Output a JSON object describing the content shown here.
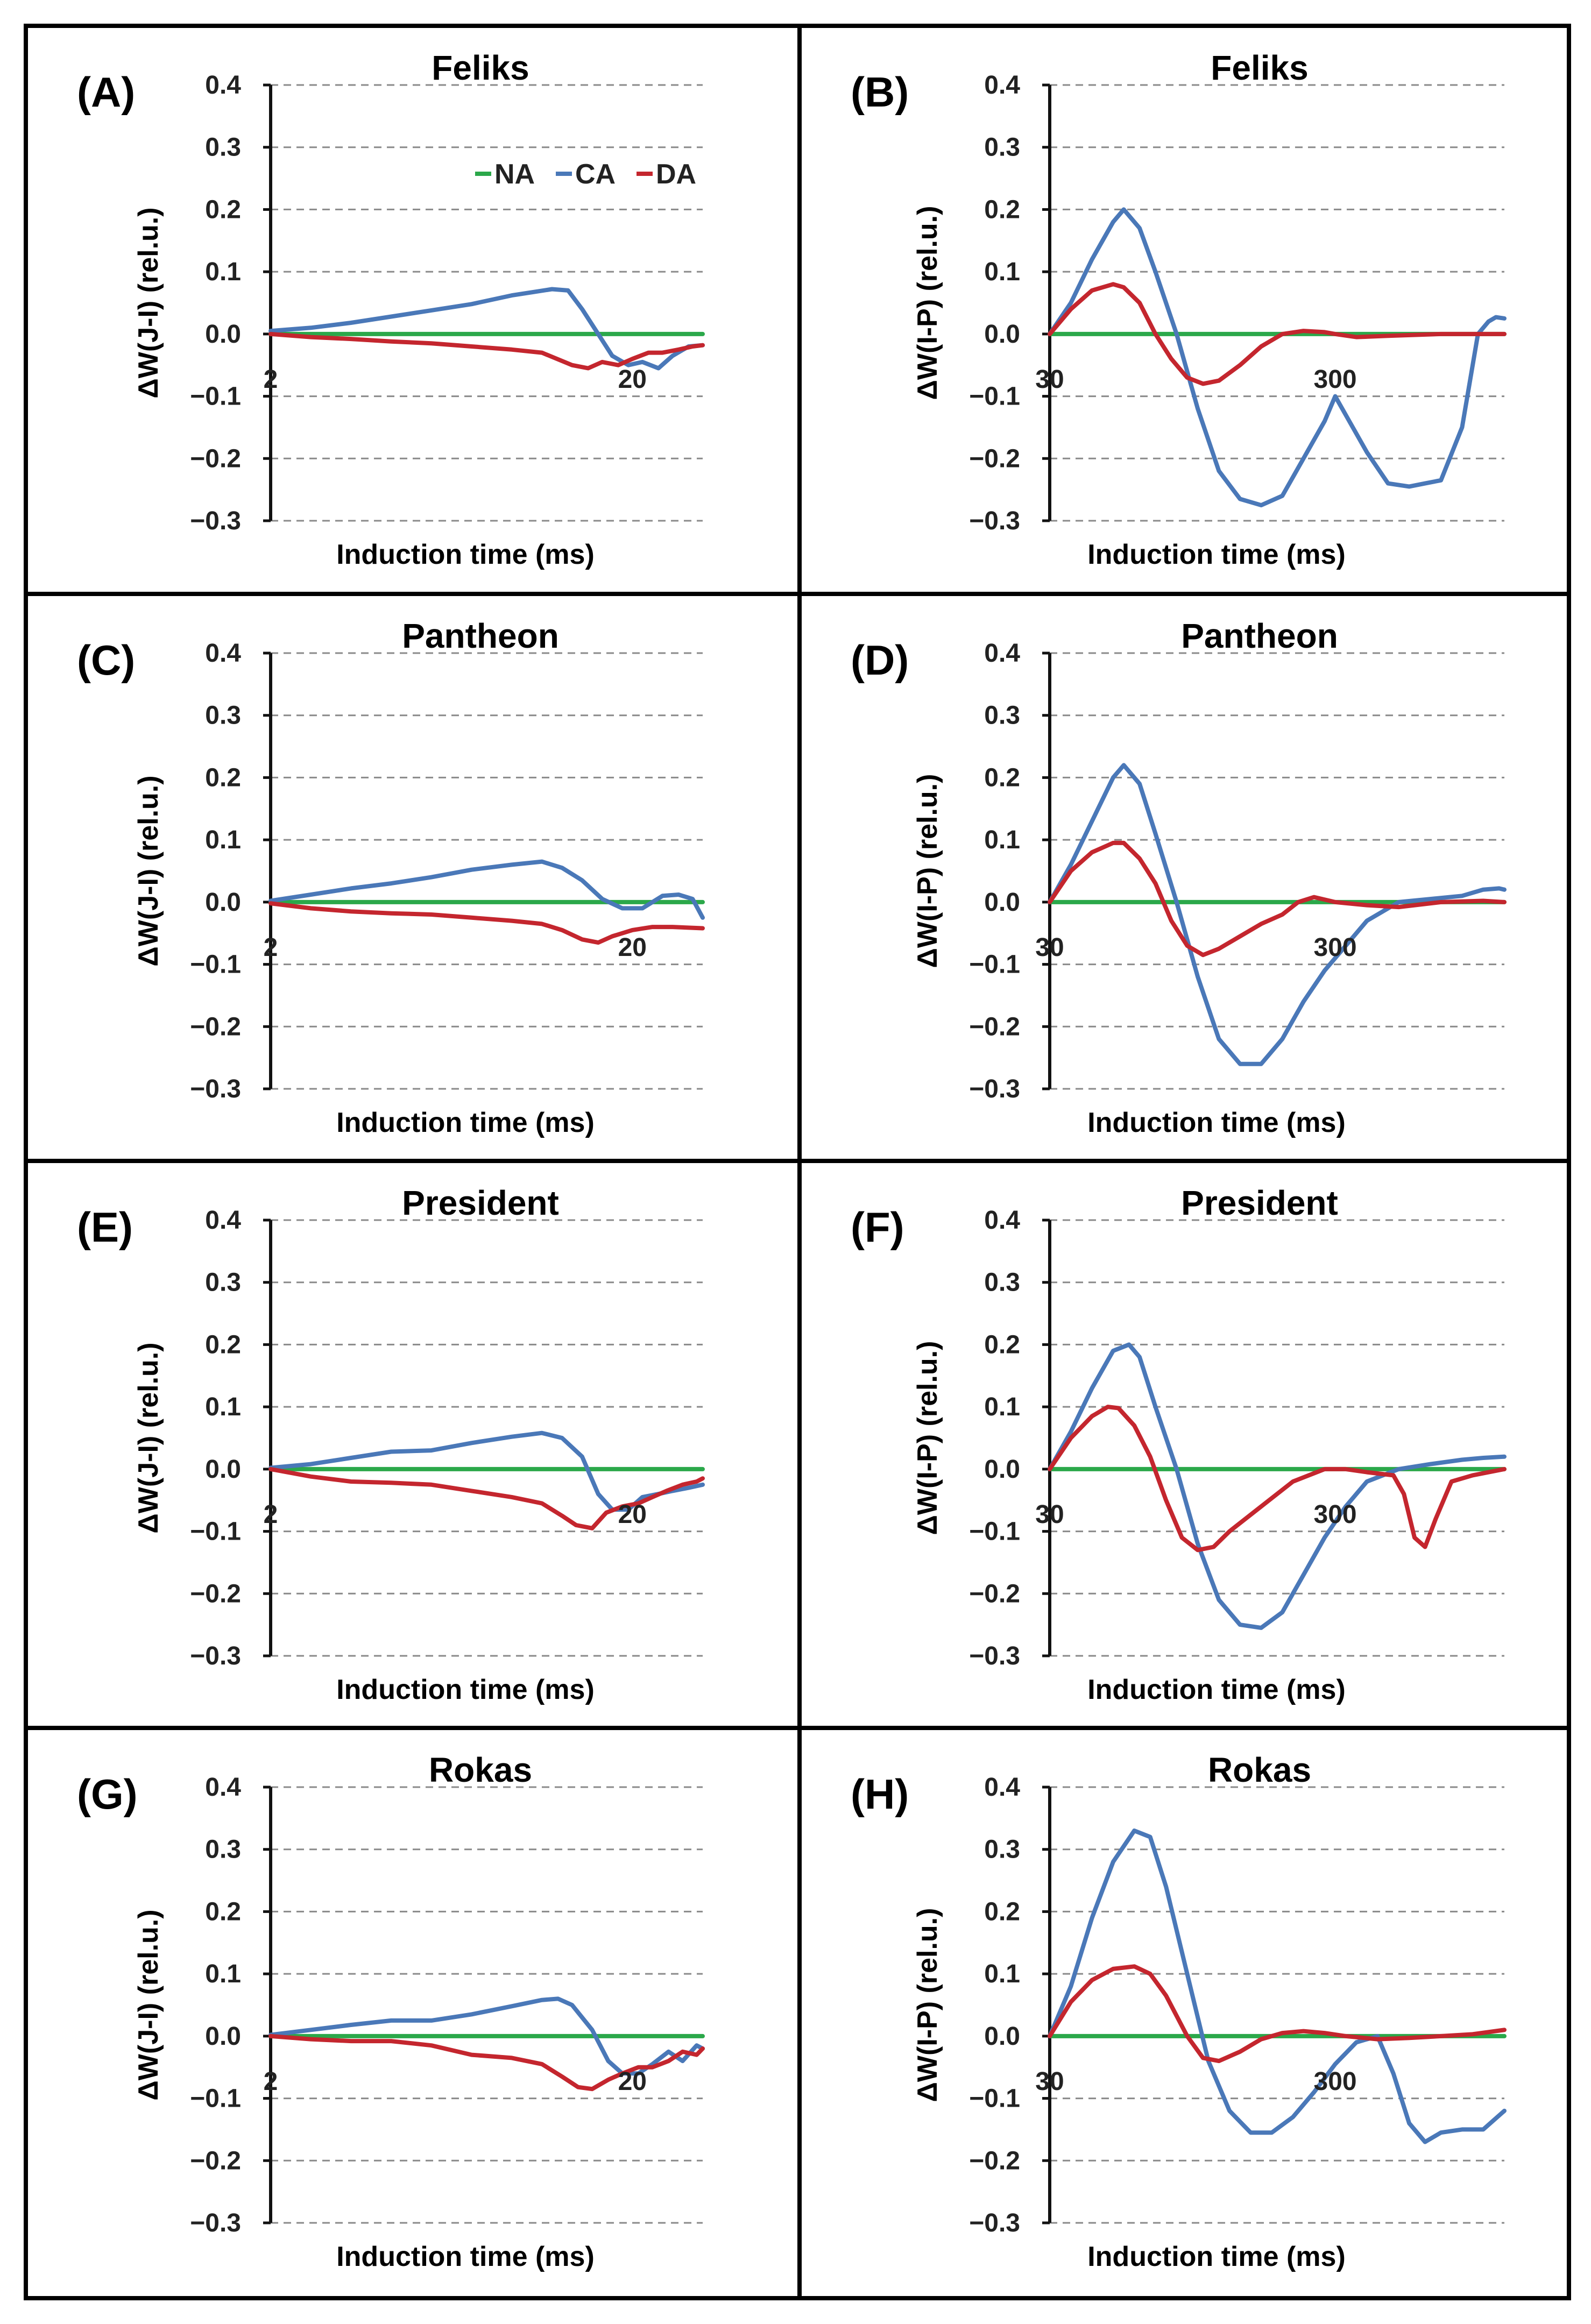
{
  "chart_data": [
    {
      "id": "A",
      "type": "line",
      "panel_label": "(A)",
      "title": "Feliks",
      "xlabel": "Induction time (ms)",
      "ylabel": "ΔW(J-I) (rel.u.)",
      "ylim": [
        -0.3,
        0.4
      ],
      "yticks": [
        "0.4",
        "0.3",
        "0.2",
        "0.1",
        "0.0",
        "−0.1",
        "−0.2",
        "−0.3"
      ],
      "xtick_labels": [
        {
          "x": 2,
          "label": "2"
        },
        {
          "x": 20,
          "label": "20"
        }
      ],
      "xlim": [
        2,
        23.5
      ],
      "series": [
        {
          "name": "NA",
          "x": [
            2,
            23.5
          ],
          "y": [
            0,
            0
          ]
        },
        {
          "name": "CA",
          "x": [
            2,
            4,
            6,
            8,
            10,
            12,
            14,
            15,
            16,
            16.8,
            17.5,
            18.3,
            19,
            19.8,
            20.5,
            21.3,
            22,
            22.8,
            23.5
          ],
          "y": [
            0.005,
            0.01,
            0.018,
            0.028,
            0.038,
            0.048,
            0.062,
            0.067,
            0.072,
            0.07,
            0.04,
            0.0,
            -0.035,
            -0.05,
            -0.045,
            -0.055,
            -0.035,
            -0.02,
            -0.018
          ]
        },
        {
          "name": "DA",
          "x": [
            2,
            4,
            6,
            8,
            10,
            12,
            14,
            15.5,
            17,
            17.8,
            18.5,
            19.3,
            20,
            20.8,
            21.5,
            22.3,
            23,
            23.5
          ],
          "y": [
            0,
            -0.005,
            -0.008,
            -0.012,
            -0.015,
            -0.02,
            -0.025,
            -0.03,
            -0.05,
            -0.055,
            -0.045,
            -0.05,
            -0.04,
            -0.03,
            -0.03,
            -0.025,
            -0.02,
            -0.018
          ]
        }
      ]
    },
    {
      "id": "B",
      "type": "line",
      "panel_label": "(B)",
      "title": "Feliks",
      "xlabel": "Induction time (ms)",
      "ylabel": "ΔW(I-P) (rel.u.)",
      "ylim": [
        -0.3,
        0.4
      ],
      "yticks": [
        "0.4",
        "0.3",
        "0.2",
        "0.1",
        "0.0",
        "−0.1",
        "−0.2",
        "−0.3"
      ],
      "xtick_labels": [
        {
          "x": 30,
          "label": "30"
        },
        {
          "x": 300,
          "label": "300"
        }
      ],
      "xlim": [
        30,
        460
      ],
      "series": [
        {
          "name": "NA",
          "x": [
            30,
            460
          ],
          "y": [
            0,
            0
          ]
        },
        {
          "name": "CA",
          "x": [
            30,
            50,
            70,
            90,
            100,
            115,
            130,
            150,
            170,
            190,
            210,
            230,
            250,
            270,
            290,
            300,
            310,
            330,
            350,
            370,
            385,
            400,
            420,
            435,
            445,
            452,
            460
          ],
          "y": [
            0,
            0.05,
            0.12,
            0.18,
            0.2,
            0.17,
            0.1,
            0.0,
            -0.12,
            -0.22,
            -0.265,
            -0.275,
            -0.26,
            -0.2,
            -0.14,
            -0.1,
            -0.13,
            -0.19,
            -0.24,
            -0.245,
            -0.24,
            -0.235,
            -0.15,
            0.0,
            0.02,
            0.027,
            0.025
          ]
        },
        {
          "name": "DA",
          "x": [
            30,
            50,
            70,
            90,
            100,
            115,
            130,
            145,
            160,
            175,
            190,
            210,
            230,
            250,
            270,
            290,
            300,
            320,
            350,
            400,
            460
          ],
          "y": [
            0,
            0.04,
            0.07,
            0.08,
            0.075,
            0.05,
            0.0,
            -0.04,
            -0.07,
            -0.08,
            -0.075,
            -0.05,
            -0.02,
            0.0,
            0.005,
            0.003,
            0.0,
            -0.005,
            -0.003,
            0.0,
            0.0
          ]
        }
      ]
    },
    {
      "id": "C",
      "type": "line",
      "panel_label": "(C)",
      "title": "Pantheon",
      "xlabel": "Induction time (ms)",
      "ylabel": "ΔW(J-I) (rel.u.)",
      "ylim": [
        -0.3,
        0.4
      ],
      "yticks": [
        "0.4",
        "0.3",
        "0.2",
        "0.1",
        "0.0",
        "−0.1",
        "−0.2",
        "−0.3"
      ],
      "xtick_labels": [
        {
          "x": 2,
          "label": "2"
        },
        {
          "x": 20,
          "label": "20"
        }
      ],
      "xlim": [
        2,
        23.5
      ],
      "series": [
        {
          "name": "NA",
          "x": [
            2,
            23.5
          ],
          "y": [
            0,
            0
          ]
        },
        {
          "name": "CA",
          "x": [
            2,
            4,
            6,
            8,
            10,
            12,
            14,
            15.5,
            16.5,
            17.5,
            18.5,
            19.5,
            20.5,
            21.5,
            22.3,
            23,
            23.5
          ],
          "y": [
            0.002,
            0.012,
            0.022,
            0.03,
            0.04,
            0.052,
            0.06,
            0.065,
            0.055,
            0.035,
            0.005,
            -0.01,
            -0.01,
            0.01,
            0.012,
            0.005,
            -0.025
          ]
        },
        {
          "name": "DA",
          "x": [
            2,
            4,
            6,
            8,
            10,
            12,
            14,
            15.5,
            16.5,
            17.5,
            18.3,
            19,
            20,
            21,
            22,
            23.5
          ],
          "y": [
            -0.002,
            -0.01,
            -0.015,
            -0.018,
            -0.02,
            -0.025,
            -0.03,
            -0.035,
            -0.045,
            -0.06,
            -0.065,
            -0.055,
            -0.045,
            -0.04,
            -0.04,
            -0.042
          ]
        }
      ]
    },
    {
      "id": "D",
      "type": "line",
      "panel_label": "(D)",
      "title": "Pantheon",
      "xlabel": "Induction time (ms)",
      "ylabel": "ΔW(I-P) (rel.u.)",
      "ylim": [
        -0.3,
        0.4
      ],
      "yticks": [
        "0.4",
        "0.3",
        "0.2",
        "0.1",
        "0.0",
        "−0.1",
        "−0.2",
        "−0.3"
      ],
      "xtick_labels": [
        {
          "x": 30,
          "label": "30"
        },
        {
          "x": 300,
          "label": "300"
        }
      ],
      "xlim": [
        30,
        460
      ],
      "series": [
        {
          "name": "NA",
          "x": [
            30,
            460
          ],
          "y": [
            0,
            0
          ]
        },
        {
          "name": "CA",
          "x": [
            30,
            50,
            70,
            90,
            100,
            115,
            130,
            150,
            170,
            190,
            210,
            230,
            250,
            270,
            290,
            310,
            330,
            360,
            390,
            420,
            440,
            455,
            460
          ],
          "y": [
            0,
            0.06,
            0.13,
            0.2,
            0.22,
            0.19,
            0.11,
            0.0,
            -0.12,
            -0.22,
            -0.26,
            -0.26,
            -0.22,
            -0.16,
            -0.11,
            -0.07,
            -0.03,
            0.0,
            0.005,
            0.01,
            0.02,
            0.022,
            0.02
          ]
        },
        {
          "name": "DA",
          "x": [
            30,
            50,
            70,
            90,
            100,
            115,
            130,
            145,
            160,
            175,
            190,
            210,
            230,
            250,
            265,
            280,
            300,
            330,
            360,
            400,
            440,
            460
          ],
          "y": [
            0,
            0.05,
            0.08,
            0.095,
            0.095,
            0.07,
            0.03,
            -0.03,
            -0.07,
            -0.085,
            -0.075,
            -0.055,
            -0.035,
            -0.02,
            0.0,
            0.008,
            0.0,
            -0.005,
            -0.008,
            0.0,
            0.002,
            0.0
          ]
        }
      ]
    },
    {
      "id": "E",
      "type": "line",
      "panel_label": "(E)",
      "title": "President",
      "xlabel": "Induction time (ms)",
      "ylabel": "ΔW(J-I) (rel.u.)",
      "ylim": [
        -0.3,
        0.4
      ],
      "yticks": [
        "0.4",
        "0.3",
        "0.2",
        "0.1",
        "0.0",
        "−0.1",
        "−0.2",
        "−0.3"
      ],
      "xtick_labels": [
        {
          "x": 2,
          "label": "2"
        },
        {
          "x": 20,
          "label": "20"
        }
      ],
      "xlim": [
        2,
        23.5
      ],
      "series": [
        {
          "name": "NA",
          "x": [
            2,
            23.5
          ],
          "y": [
            0,
            0
          ]
        },
        {
          "name": "CA",
          "x": [
            2,
            4,
            6,
            8,
            10,
            12,
            14,
            15.5,
            16.5,
            17.5,
            18.3,
            19,
            19.8,
            20.5,
            21.3,
            22,
            22.8,
            23.5
          ],
          "y": [
            0.002,
            0.008,
            0.018,
            0.028,
            0.03,
            0.042,
            0.052,
            0.058,
            0.05,
            0.02,
            -0.04,
            -0.065,
            -0.065,
            -0.045,
            -0.04,
            -0.035,
            -0.03,
            -0.025
          ]
        },
        {
          "name": "DA",
          "x": [
            2,
            4,
            6,
            8,
            10,
            12,
            14,
            15.5,
            16.5,
            17.2,
            18,
            18.7,
            19.5,
            20.3,
            21,
            21.7,
            22.5,
            23.2,
            23.5
          ],
          "y": [
            0,
            -0.012,
            -0.02,
            -0.022,
            -0.025,
            -0.035,
            -0.045,
            -0.055,
            -0.075,
            -0.09,
            -0.095,
            -0.07,
            -0.06,
            -0.055,
            -0.045,
            -0.035,
            -0.025,
            -0.02,
            -0.015
          ]
        }
      ]
    },
    {
      "id": "F",
      "type": "line",
      "panel_label": "(F)",
      "title": "President",
      "xlabel": "Induction time (ms)",
      "ylabel": "ΔW(I-P) (rel.u.)",
      "ylim": [
        -0.3,
        0.4
      ],
      "yticks": [
        "0.4",
        "0.3",
        "0.2",
        "0.1",
        "0.0",
        "−0.1",
        "−0.2",
        "−0.3"
      ],
      "xtick_labels": [
        {
          "x": 30,
          "label": "30"
        },
        {
          "x": 300,
          "label": "300"
        }
      ],
      "xlim": [
        30,
        460
      ],
      "series": [
        {
          "name": "NA",
          "x": [
            30,
            460
          ],
          "y": [
            0,
            0
          ]
        },
        {
          "name": "CA",
          "x": [
            30,
            50,
            70,
            90,
            105,
            115,
            130,
            150,
            170,
            190,
            210,
            230,
            250,
            270,
            290,
            310,
            330,
            360,
            390,
            420,
            440,
            460
          ],
          "y": [
            0,
            0.06,
            0.13,
            0.19,
            0.2,
            0.18,
            0.1,
            0.0,
            -0.12,
            -0.21,
            -0.25,
            -0.255,
            -0.23,
            -0.17,
            -0.11,
            -0.06,
            -0.02,
            0.0,
            0.008,
            0.015,
            0.018,
            0.02
          ]
        },
        {
          "name": "DA",
          "x": [
            30,
            50,
            70,
            85,
            95,
            110,
            125,
            140,
            155,
            170,
            185,
            200,
            230,
            260,
            290,
            310,
            330,
            355,
            365,
            375,
            385,
            395,
            410,
            430,
            460
          ],
          "y": [
            0,
            0.05,
            0.085,
            0.1,
            0.098,
            0.07,
            0.02,
            -0.05,
            -0.11,
            -0.13,
            -0.125,
            -0.1,
            -0.06,
            -0.02,
            0.0,
            0.0,
            -0.005,
            -0.01,
            -0.04,
            -0.11,
            -0.125,
            -0.08,
            -0.02,
            -0.01,
            0.0
          ]
        }
      ]
    },
    {
      "id": "G",
      "type": "line",
      "panel_label": "(G)",
      "title": "Rokas",
      "xlabel": "Induction time (ms)",
      "ylabel": "ΔW(J-I) (rel.u.)",
      "ylim": [
        -0.3,
        0.4
      ],
      "yticks": [
        "0.4",
        "0.3",
        "0.2",
        "0.1",
        "0.0",
        "−0.1",
        "−0.2",
        "−0.3"
      ],
      "xtick_labels": [
        {
          "x": 2,
          "label": "2"
        },
        {
          "x": 20,
          "label": "20"
        }
      ],
      "xlim": [
        2,
        23.5
      ],
      "series": [
        {
          "name": "NA",
          "x": [
            2,
            23.5
          ],
          "y": [
            0,
            0
          ]
        },
        {
          "name": "CA",
          "x": [
            2,
            4,
            6,
            8,
            10,
            12,
            14,
            15.5,
            16.3,
            17,
            18,
            18.8,
            19.5,
            20.3,
            21,
            21.8,
            22.5,
            23.2,
            23.5
          ],
          "y": [
            0.002,
            0.01,
            0.018,
            0.025,
            0.025,
            0.035,
            0.048,
            0.058,
            0.06,
            0.05,
            0.01,
            -0.04,
            -0.06,
            -0.06,
            -0.045,
            -0.025,
            -0.04,
            -0.015,
            -0.02
          ]
        },
        {
          "name": "DA",
          "x": [
            2,
            4,
            6,
            8,
            10,
            12,
            14,
            15.5,
            16.5,
            17.3,
            18,
            18.8,
            19.5,
            20.3,
            21,
            21.8,
            22.5,
            23.2,
            23.5
          ],
          "y": [
            0,
            -0.005,
            -0.008,
            -0.008,
            -0.015,
            -0.03,
            -0.035,
            -0.045,
            -0.065,
            -0.082,
            -0.085,
            -0.07,
            -0.06,
            -0.05,
            -0.05,
            -0.04,
            -0.025,
            -0.03,
            -0.02
          ]
        }
      ]
    },
    {
      "id": "H",
      "type": "line",
      "panel_label": "(H)",
      "title": "Rokas",
      "xlabel": "Induction time (ms)",
      "ylabel": "ΔW(I-P) (rel.u.)",
      "ylim": [
        -0.3,
        0.4
      ],
      "yticks": [
        "0.4",
        "0.3",
        "0.2",
        "0.1",
        "0.0",
        "−0.1",
        "−0.2",
        "−0.3"
      ],
      "xtick_labels": [
        {
          "x": 30,
          "label": "30"
        },
        {
          "x": 300,
          "label": "300"
        }
      ],
      "xlim": [
        30,
        460
      ],
      "series": [
        {
          "name": "NA",
          "x": [
            30,
            460
          ],
          "y": [
            0,
            0
          ]
        },
        {
          "name": "CA",
          "x": [
            30,
            50,
            70,
            90,
            110,
            125,
            140,
            160,
            180,
            200,
            220,
            240,
            260,
            280,
            300,
            320,
            340,
            355,
            370,
            385,
            400,
            420,
            440,
            460
          ],
          "y": [
            0,
            0.08,
            0.19,
            0.28,
            0.33,
            0.32,
            0.24,
            0.1,
            -0.04,
            -0.12,
            -0.155,
            -0.155,
            -0.13,
            -0.09,
            -0.045,
            -0.01,
            0.0,
            -0.06,
            -0.14,
            -0.17,
            -0.155,
            -0.15,
            -0.15,
            -0.12
          ]
        },
        {
          "name": "DA",
          "x": [
            30,
            50,
            70,
            90,
            110,
            125,
            140,
            160,
            175,
            190,
            210,
            230,
            250,
            270,
            290,
            310,
            340,
            370,
            400,
            430,
            460
          ],
          "y": [
            0,
            0.055,
            0.09,
            0.108,
            0.112,
            0.1,
            0.065,
            0.0,
            -0.035,
            -0.04,
            -0.025,
            -0.005,
            0.005,
            0.008,
            0.005,
            0.0,
            -0.005,
            -0.003,
            0.0,
            0.003,
            0.01
          ]
        }
      ]
    }
  ],
  "legend": {
    "entries": [
      "NA",
      "CA",
      "DA"
    ]
  },
  "colors": {
    "NA": "#2ba84a",
    "CA": "#4a78b8",
    "DA": "#c4262e",
    "grid": "#8a8a8a",
    "axis": "#111111",
    "frame": "#000000"
  }
}
